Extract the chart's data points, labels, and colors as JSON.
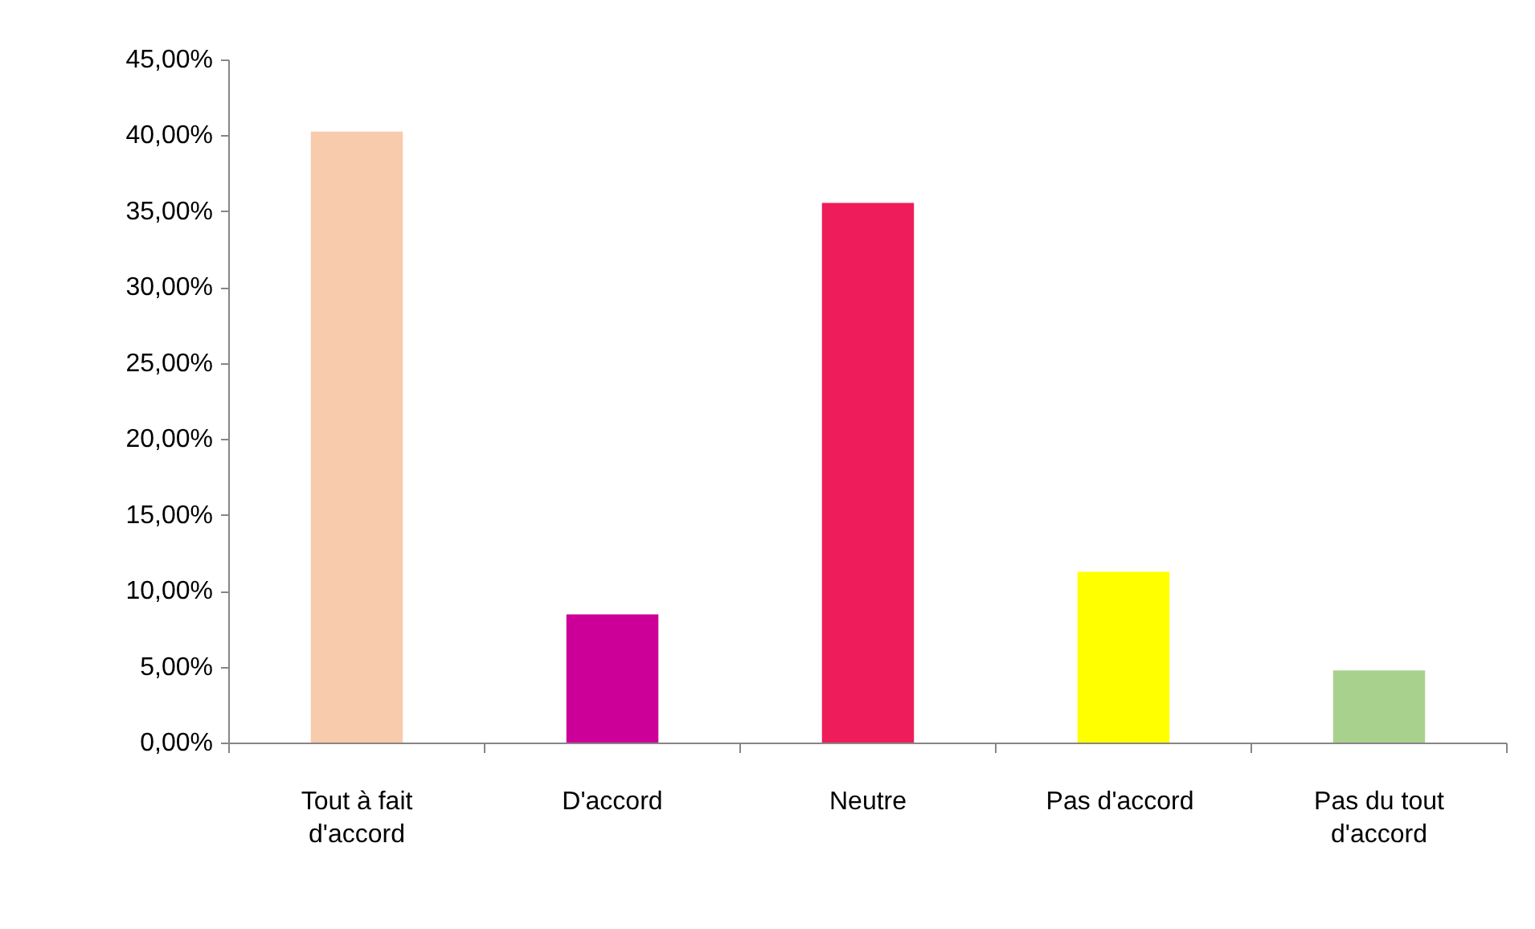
{
  "chart_data": {
    "type": "bar",
    "categories": [
      "Tout à fait d'accord",
      "D'accord",
      "Neutre",
      "Pas  d'accord",
      "Pas du tout d'accord"
    ],
    "values": [
      40.3,
      8.5,
      35.6,
      11.3,
      4.8
    ],
    "colors": [
      "#f8cbad",
      "#cc0099",
      "#ee1c5a",
      "#ffff00",
      "#a9d18e"
    ],
    "ylim": [
      0,
      45
    ],
    "yticks": [
      {
        "value": 0,
        "label": "0,00%"
      },
      {
        "value": 5,
        "label": "5,00%"
      },
      {
        "value": 10,
        "label": "10,00%"
      },
      {
        "value": 15,
        "label": "15,00%"
      },
      {
        "value": 20,
        "label": "20,00%"
      },
      {
        "value": 25,
        "label": "25,00%"
      },
      {
        "value": 30,
        "label": "30,00%"
      },
      {
        "value": 35,
        "label": "35,00%"
      },
      {
        "value": 40,
        "label": "40,00%"
      },
      {
        "value": 45,
        "label": "45,00%"
      }
    ],
    "grid": false
  }
}
